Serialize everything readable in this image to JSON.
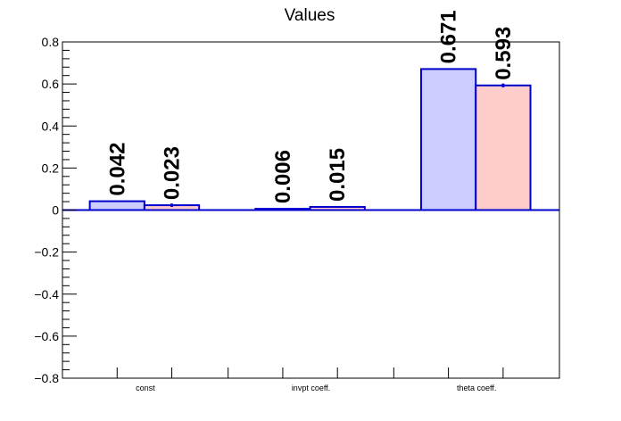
{
  "chart_data": {
    "type": "bar",
    "title": "Values",
    "categories": [
      "const",
      "invpt coeff.",
      "theta coeff."
    ],
    "series": [
      {
        "values": [
          0.042,
          0.006,
          0.671
        ],
        "errors": [
          0.0,
          0.0,
          0.0
        ]
      },
      {
        "values": [
          0.023,
          0.015,
          0.593
        ],
        "errors": [
          0.008,
          0.003,
          0.009
        ]
      }
    ],
    "data_labels": [
      [
        "0.042",
        "0.006",
        "0.671"
      ],
      [
        "0.023",
        "0.015",
        "0.593"
      ]
    ],
    "ylim": [
      -0.8,
      0.8
    ],
    "yticks": [
      -0.8,
      -0.6,
      -0.4,
      -0.2,
      0,
      0.2,
      0.4,
      0.6,
      0.8
    ],
    "ytick_labels": [
      "−0.8",
      "−0.6",
      "−0.4",
      "−0.2",
      "0",
      "0.2",
      "0.4",
      "0.6",
      "0.8"
    ],
    "colors": {
      "series1_fill": "#ccccff",
      "series2_fill": "#ffcccc",
      "outline": "#0000cc",
      "zero_line": "#0000cc",
      "axis": "#000000"
    },
    "grid": false,
    "legend": "none"
  }
}
